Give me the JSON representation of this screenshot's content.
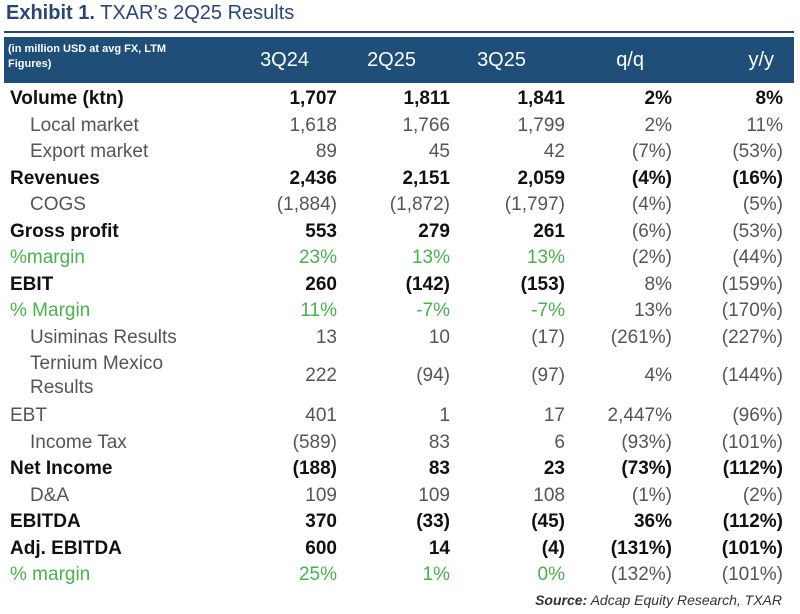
{
  "title": {
    "prefix": "Exhibit 1.",
    "text": "TXAR’s 2Q25 Results"
  },
  "header": {
    "note": "(in million USD at avg FX, LTM Figures)",
    "columns": [
      "3Q24",
      "2Q25",
      "3Q25",
      "q/q",
      "y/y"
    ]
  },
  "rows": [
    {
      "label": "Volume (ktn)",
      "values": [
        "1,707",
        "1,811",
        "1,841",
        "2%",
        "8%"
      ]
    },
    {
      "label": "Local market",
      "values": [
        "1,618",
        "1,766",
        "1,799",
        "2%",
        "11%"
      ]
    },
    {
      "label": "Export market",
      "values": [
        "89",
        "45",
        "42",
        "(7%)",
        "(53%)"
      ]
    },
    {
      "label": "Revenues",
      "values": [
        "2,436",
        "2,151",
        "2,059",
        "(4%)",
        "(16%)"
      ]
    },
    {
      "label": "COGS",
      "values": [
        "(1,884)",
        "(1,872)",
        "(1,797)",
        "(4%)",
        "(5%)"
      ]
    },
    {
      "label": "Gross profit",
      "values": [
        "553",
        "279",
        "261",
        "(6%)",
        "(53%)"
      ]
    },
    {
      "label": "%margin",
      "values": [
        "23%",
        "13%",
        "13%",
        "(2%)",
        "(44%)"
      ]
    },
    {
      "label": "EBIT",
      "values": [
        "260",
        "(142)",
        "(153)",
        "8%",
        "(159%)"
      ]
    },
    {
      "label": "% Margin",
      "values": [
        "11%",
        "-7%",
        "-7%",
        "13%",
        "(170%)"
      ]
    },
    {
      "label": "Usiminas Results",
      "values": [
        "13",
        "10",
        "(17)",
        "(261%)",
        "(227%)"
      ]
    },
    {
      "label_line1": "Ternium Mexico",
      "label_line2": "Results",
      "values": [
        "222",
        "(94)",
        "(97)",
        "4%",
        "(144%)"
      ]
    },
    {
      "label": "EBT",
      "values": [
        "401",
        "1",
        "17",
        "2,447%",
        "(96%)"
      ]
    },
    {
      "label": "Income Tax",
      "values": [
        "(589)",
        "83",
        "6",
        "(93%)",
        "(101%)"
      ]
    },
    {
      "label": "Net Income",
      "values": [
        "(188)",
        "83",
        "23",
        "(73%)",
        "(112%)"
      ]
    },
    {
      "label": "D&A",
      "values": [
        "109",
        "109",
        "108",
        "(1%)",
        "(2%)"
      ]
    },
    {
      "label": "EBITDA",
      "values": [
        "370",
        "(33)",
        "(45)",
        "36%",
        "(112%)"
      ]
    },
    {
      "label": "Adj. EBITDA",
      "values": [
        "600",
        "14",
        "(4)",
        "(131%)",
        "(101%)"
      ]
    },
    {
      "label": "% margin",
      "values": [
        "25%",
        "1%",
        "0%",
        "(132%)",
        "(101%)"
      ]
    }
  ],
  "source": {
    "prefix": "Source:",
    "text": "Adcap Equity Research, TXAR"
  }
}
